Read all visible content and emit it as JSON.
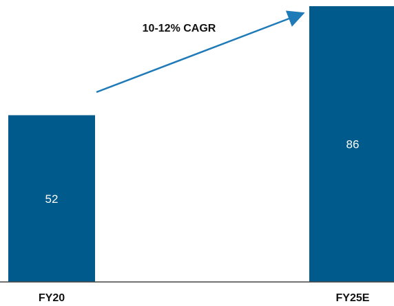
{
  "chart_data": {
    "type": "bar",
    "categories": [
      "FY20",
      "FY25E"
    ],
    "values": [
      52,
      86
    ],
    "data_labels": [
      "52",
      "86"
    ],
    "annotation": "10-12% CAGR",
    "title": "",
    "xlabel": "",
    "ylabel": "",
    "ylim": [
      0,
      86
    ],
    "grid": false,
    "legend": "none"
  },
  "colors": {
    "bar": "#005b8c",
    "arrow": "#1f7ab8",
    "baseline": "#444444"
  }
}
